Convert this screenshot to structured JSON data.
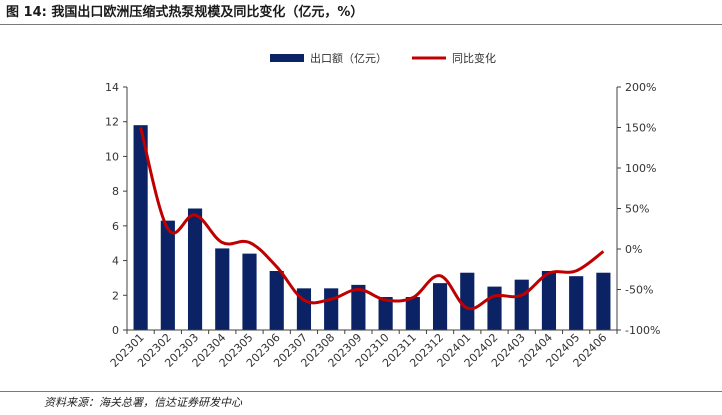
{
  "header": {
    "title": "图 14: 我国出口欧洲压缩式热泵规模及同比变化（亿元，%）"
  },
  "footer": {
    "source": "资料来源：海关总署，信达证券研发中心"
  },
  "colors": {
    "bar": "#0b2264",
    "line": "#c00000",
    "axis": "#404040"
  },
  "chart_data": {
    "type": "bar",
    "title": "我国出口欧洲压缩式热泵规模及同比变化（亿元，%）",
    "categories": [
      "202301",
      "202302",
      "202303",
      "202304",
      "202305",
      "202306",
      "202307",
      "202308",
      "202309",
      "202310",
      "202311",
      "202312",
      "202401",
      "202402",
      "202403",
      "202404",
      "202405",
      "202406"
    ],
    "series": [
      {
        "name": "出口额（亿元）",
        "type": "bar",
        "axis": "left",
        "values": [
          11.8,
          6.3,
          7.0,
          4.7,
          4.4,
          3.4,
          2.4,
          2.4,
          2.6,
          1.9,
          1.9,
          2.7,
          3.3,
          2.5,
          2.9,
          3.4,
          3.1,
          3.3
        ]
      },
      {
        "name": "同比变化",
        "type": "line",
        "axis": "right",
        "values": [
          150,
          25,
          42,
          8,
          8,
          -22,
          -63,
          -62,
          -50,
          -63,
          -60,
          -33,
          -73,
          -58,
          -57,
          -30,
          -27,
          -3
        ]
      }
    ],
    "left_axis": {
      "ylim": [
        0,
        14
      ],
      "ticks": [
        "0",
        "2",
        "4",
        "6",
        "8",
        "10",
        "12",
        "14"
      ],
      "tick_values": [
        0,
        2,
        4,
        6,
        8,
        10,
        12,
        14
      ]
    },
    "right_axis": {
      "ylim": [
        -100,
        200
      ],
      "ticks": [
        "-100%",
        "-50%",
        "0%",
        "50%",
        "100%",
        "150%",
        "200%"
      ],
      "tick_values": [
        -100,
        -50,
        0,
        50,
        100,
        150,
        200
      ]
    },
    "legend": {
      "position": "top-center",
      "entries": [
        "出口额（亿元）",
        "同比变化"
      ]
    },
    "grid": false
  }
}
